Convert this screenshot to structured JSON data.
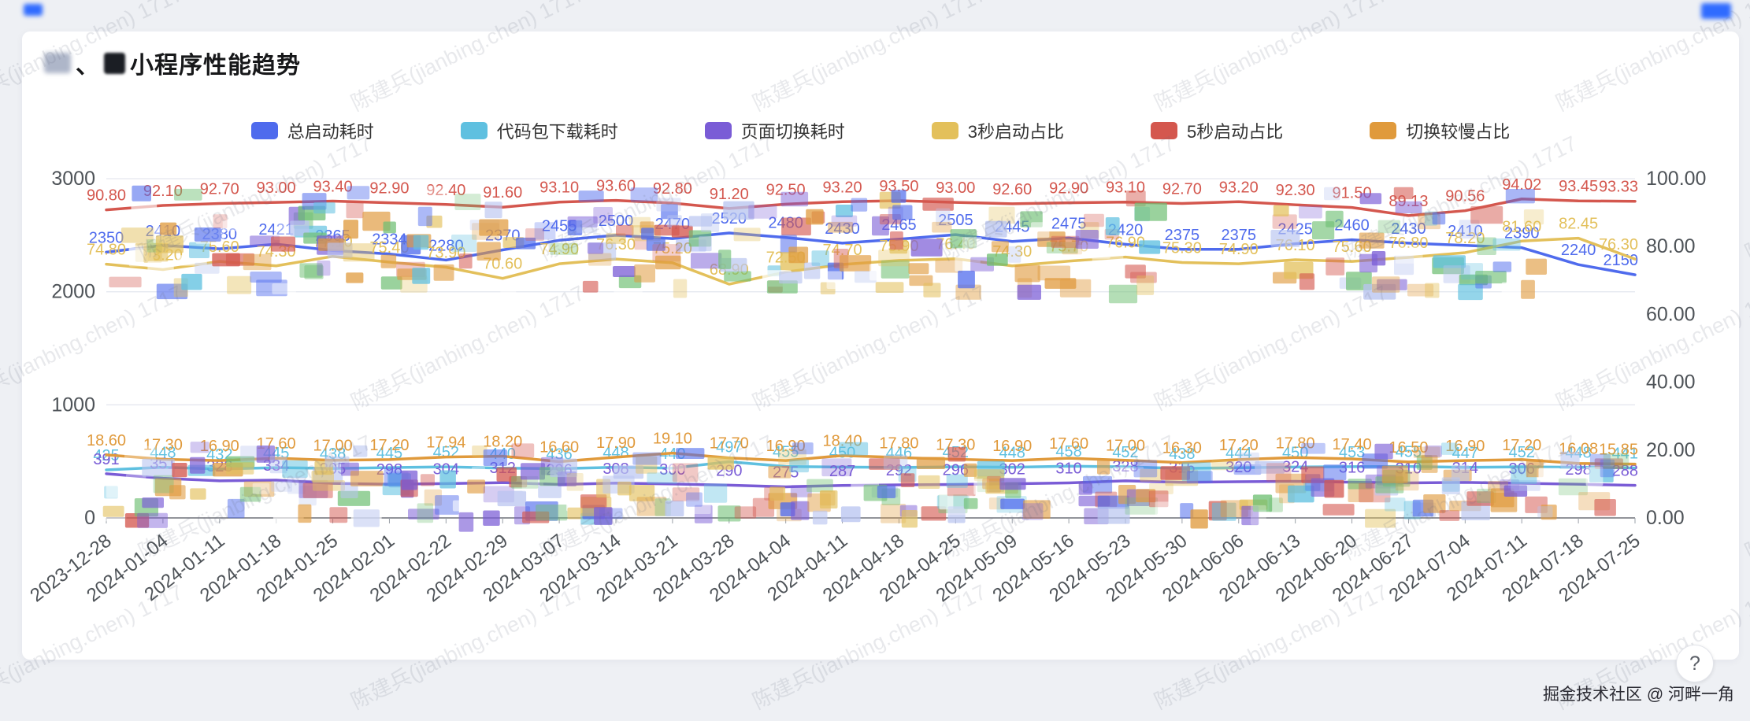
{
  "page": {
    "title_prefix": "、",
    "title": "小程序性能趋势",
    "watermark": "陈建兵(jianbing.chen) 1717",
    "footer": "掘金技术社区 @ 河畔一角",
    "help_label": "?"
  },
  "legend": [
    {
      "label": "总启动耗时",
      "color": "#4f6bed"
    },
    {
      "label": "代码包下载耗时",
      "color": "#5fc0e0"
    },
    {
      "label": "页面切换耗时",
      "color": "#7a5cd6"
    },
    {
      "label": "3秒启动占比",
      "color": "#e3c05b"
    },
    {
      "label": "5秒启动占比",
      "color": "#d4574e"
    },
    {
      "label": "切换较慢占比",
      "color": "#e09a3c"
    }
  ],
  "chart_data": {
    "type": "line",
    "title": "小程序性能趋势",
    "categories": [
      "2023-12-28",
      "2024-01-04",
      "2024-01-11",
      "2024-01-18",
      "2024-01-25",
      "2024-02-01",
      "2024-02-22",
      "2024-02-29",
      "2024-03-07",
      "2024-03-14",
      "2024-03-21",
      "2024-03-28",
      "2024-04-04",
      "2024-04-11",
      "2024-04-18",
      "2024-04-25",
      "2024-05-09",
      "2024-05-16",
      "2024-05-23",
      "2024-05-30",
      "2024-06-06",
      "2024-06-13",
      "2024-06-20",
      "2024-06-27",
      "2024-07-04",
      "2024-07-11",
      "2024-07-18",
      "2024-07-25"
    ],
    "left_axis": {
      "min": 0,
      "max": 3000,
      "tick_labels": [
        "0",
        "1000",
        "2000",
        "3000"
      ]
    },
    "right_axis": {
      "min": 0,
      "max": 100,
      "tick_labels": [
        "0.00",
        "20.00",
        "40.00",
        "60.00",
        "80.00",
        "100.00"
      ]
    },
    "series": [
      {
        "name": "总启动耗时",
        "axis": "left",
        "color": "#4f6bed",
        "values": [
          2350,
          2410,
          2380,
          2421,
          2365,
          2334,
          2280,
          2370,
          2455,
          2500,
          2470,
          2520,
          2480,
          2430,
          2465,
          2505,
          2445,
          2475,
          2420,
          2375,
          2375,
          2425,
          2460,
          2430,
          2410,
          2390,
          2240,
          2150
        ]
      },
      {
        "name": "代码包下载耗时",
        "axis": "left",
        "color": "#5fc0e0",
        "values": [
          425,
          448,
          432,
          445,
          438,
          445,
          452,
          440,
          436,
          448,
          440,
          497,
          455,
          450,
          446,
          452,
          448,
          458,
          452,
          438,
          444,
          450,
          453,
          455,
          447,
          452,
          448,
          441
        ]
      },
      {
        "name": "页面切换耗时",
        "axis": "left",
        "color": "#7a5cd6",
        "values": [
          391,
          351,
          328,
          334,
          305,
          298,
          304,
          312,
          296,
          308,
          300,
          290,
          275,
          287,
          292,
          296,
          302,
          310,
          328,
          315,
          320,
          324,
          316,
          310,
          314,
          306,
          298,
          288
        ]
      },
      {
        "name": "3秒启动占比",
        "axis": "right",
        "color": "#e3c05b",
        "values": [
          74.8,
          73.2,
          75.6,
          74.3,
          77.1,
          75.4,
          73.9,
          70.6,
          74.9,
          76.3,
          75.2,
          68.9,
          72.5,
          74.7,
          75.9,
          76.4,
          74.3,
          75.7,
          76.9,
          75.3,
          74.9,
          76.1,
          75.6,
          76.8,
          78.2,
          81.6,
          82.45,
          76.3
        ]
      },
      {
        "name": "5秒启动占比",
        "axis": "right",
        "color": "#d4574e",
        "values": [
          90.8,
          92.1,
          92.7,
          93.0,
          93.4,
          92.9,
          92.4,
          91.6,
          93.1,
          93.6,
          92.8,
          91.2,
          92.5,
          93.2,
          93.5,
          93.0,
          92.6,
          92.9,
          93.1,
          92.7,
          93.2,
          92.3,
          91.5,
          89.13,
          90.56,
          94.02,
          93.45,
          93.33
        ]
      },
      {
        "name": "切换较慢占比",
        "axis": "right",
        "color": "#e09a3c",
        "values": [
          18.6,
          17.3,
          16.9,
          17.6,
          17.0,
          17.2,
          17.94,
          18.2,
          16.6,
          17.9,
          19.1,
          17.7,
          16.9,
          18.4,
          17.8,
          17.3,
          16.9,
          17.6,
          17.0,
          16.3,
          17.2,
          17.8,
          17.4,
          16.5,
          16.9,
          17.2,
          16.08,
          15.85
        ]
      }
    ]
  }
}
